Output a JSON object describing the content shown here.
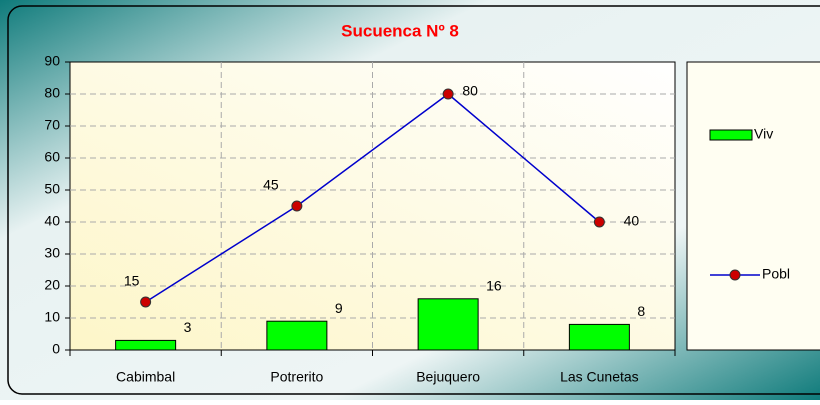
{
  "chart_data": {
    "type": "bar",
    "title": "Sucuenca Nº 8",
    "categories": [
      "Cabimbal",
      "Potrerito",
      "Bejuquero",
      "Las Cunetas"
    ],
    "series": [
      {
        "name": "Viv",
        "type": "bar",
        "color": "#00ff00",
        "values": [
          3,
          9,
          16,
          8
        ]
      },
      {
        "name": "Pobl",
        "type": "line",
        "color": "#0000cc",
        "marker_color": "#cc0000",
        "values": [
          15,
          45,
          80,
          40
        ]
      }
    ],
    "ylim": [
      0,
      90
    ],
    "yticks": [
      0,
      10,
      20,
      30,
      40,
      50,
      60,
      70,
      80,
      90
    ],
    "grid": true,
    "legend": "right"
  }
}
